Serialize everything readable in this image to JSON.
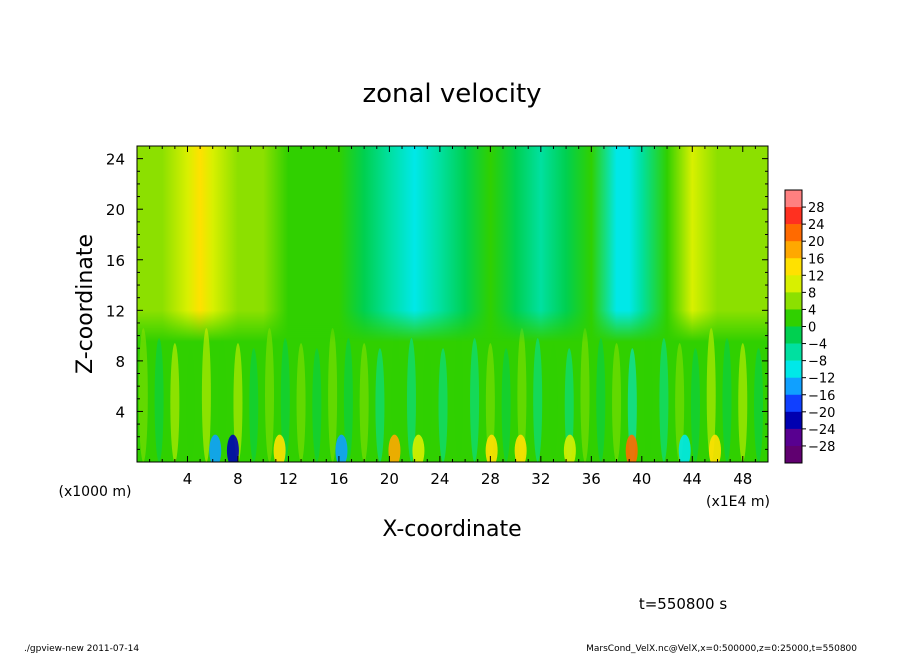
{
  "chart_data": {
    "type": "heatmap",
    "title": "zonal velocity",
    "xlabel": "X-coordinate",
    "ylabel": "Z-coordinate",
    "x_unit_note": "(x1E4 m)",
    "y_unit_note": "(x1000 m)",
    "xlim": [
      0,
      50
    ],
    "ylim": [
      0,
      25
    ],
    "x_ticks": [
      4,
      8,
      12,
      16,
      20,
      24,
      28,
      32,
      36,
      40,
      44,
      48
    ],
    "y_ticks": [
      4,
      8,
      12,
      16,
      20,
      24
    ],
    "x_tick_labels": [
      "4",
      "8",
      "12",
      "16",
      "20",
      "24",
      "28",
      "32",
      "36",
      "40",
      "44",
      "48"
    ],
    "y_tick_labels": [
      "4",
      "8",
      "12",
      "16",
      "20",
      "24"
    ],
    "colorbar": {
      "labels": [
        "28",
        "24",
        "20",
        "16",
        "12",
        "8",
        "4",
        "0",
        "−4",
        "−8",
        "−12",
        "−16",
        "−20",
        "−24",
        "−28"
      ],
      "levels": [
        28,
        24,
        20,
        16,
        12,
        8,
        4,
        0,
        -4,
        -8,
        -12,
        -16,
        -20,
        -24,
        -28
      ],
      "colors": [
        "#ff8080",
        "#ff3020",
        "#ff6a00",
        "#ffa800",
        "#ffe100",
        "#d8f000",
        "#8ce000",
        "#30d000",
        "#00d050",
        "#00e0a0",
        "#00e8e8",
        "#10a0ff",
        "#1040ff",
        "#0000b0",
        "#580090",
        "#600070"
      ]
    },
    "columns": {
      "x": [
        0,
        2,
        4,
        5,
        6,
        8,
        10,
        12,
        14,
        16,
        18,
        20,
        22,
        24,
        26,
        28,
        30,
        32,
        34,
        36,
        38,
        39,
        40,
        42,
        44,
        46,
        48,
        50
      ],
      "upper_layer_values": [
        4,
        6,
        10,
        12,
        11,
        6,
        4,
        3,
        2,
        0,
        -3,
        -8,
        -10,
        -6,
        -2,
        0,
        -3,
        -7,
        -4,
        0,
        -10,
        -11,
        -6,
        0,
        8,
        6,
        4,
        6
      ]
    }
  },
  "text": {
    "time_stamp": "t=550800 s",
    "footer_left": "./gpview-new   2011-07-14",
    "footer_right": "MarsCond_VelX.nc@VelX,x=0:500000,z=0:25000,t=550800"
  }
}
